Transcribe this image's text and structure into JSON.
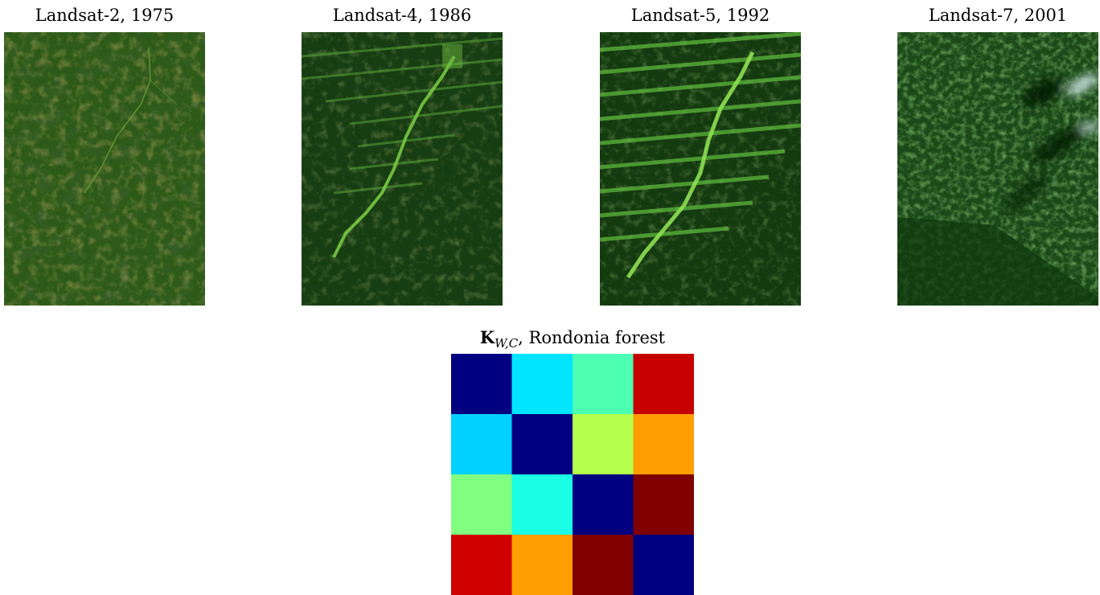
{
  "panels": [
    {
      "title": "Landsat-2, 1975"
    },
    {
      "title": "Landsat-4, 1986"
    },
    {
      "title": "Landsat-5, 1992"
    },
    {
      "title": "Landsat-7, 2001"
    }
  ],
  "heatmap": {
    "title_symbol": "K",
    "title_subscript": "W,C",
    "title_rest": ", Rondonia forest",
    "colormap": "jet",
    "rows": 4,
    "cols": 4
  },
  "chart_data": {
    "type": "heatmap",
    "title": "K_{W,C}, Rondonia forest",
    "colormap": "jet",
    "values": [
      [
        0.0,
        0.35,
        0.45,
        0.93
      ],
      [
        0.33,
        0.0,
        0.55,
        0.72
      ],
      [
        0.5,
        0.4,
        0.0,
        1.0
      ],
      [
        0.92,
        0.72,
        1.0,
        0.0
      ]
    ]
  }
}
